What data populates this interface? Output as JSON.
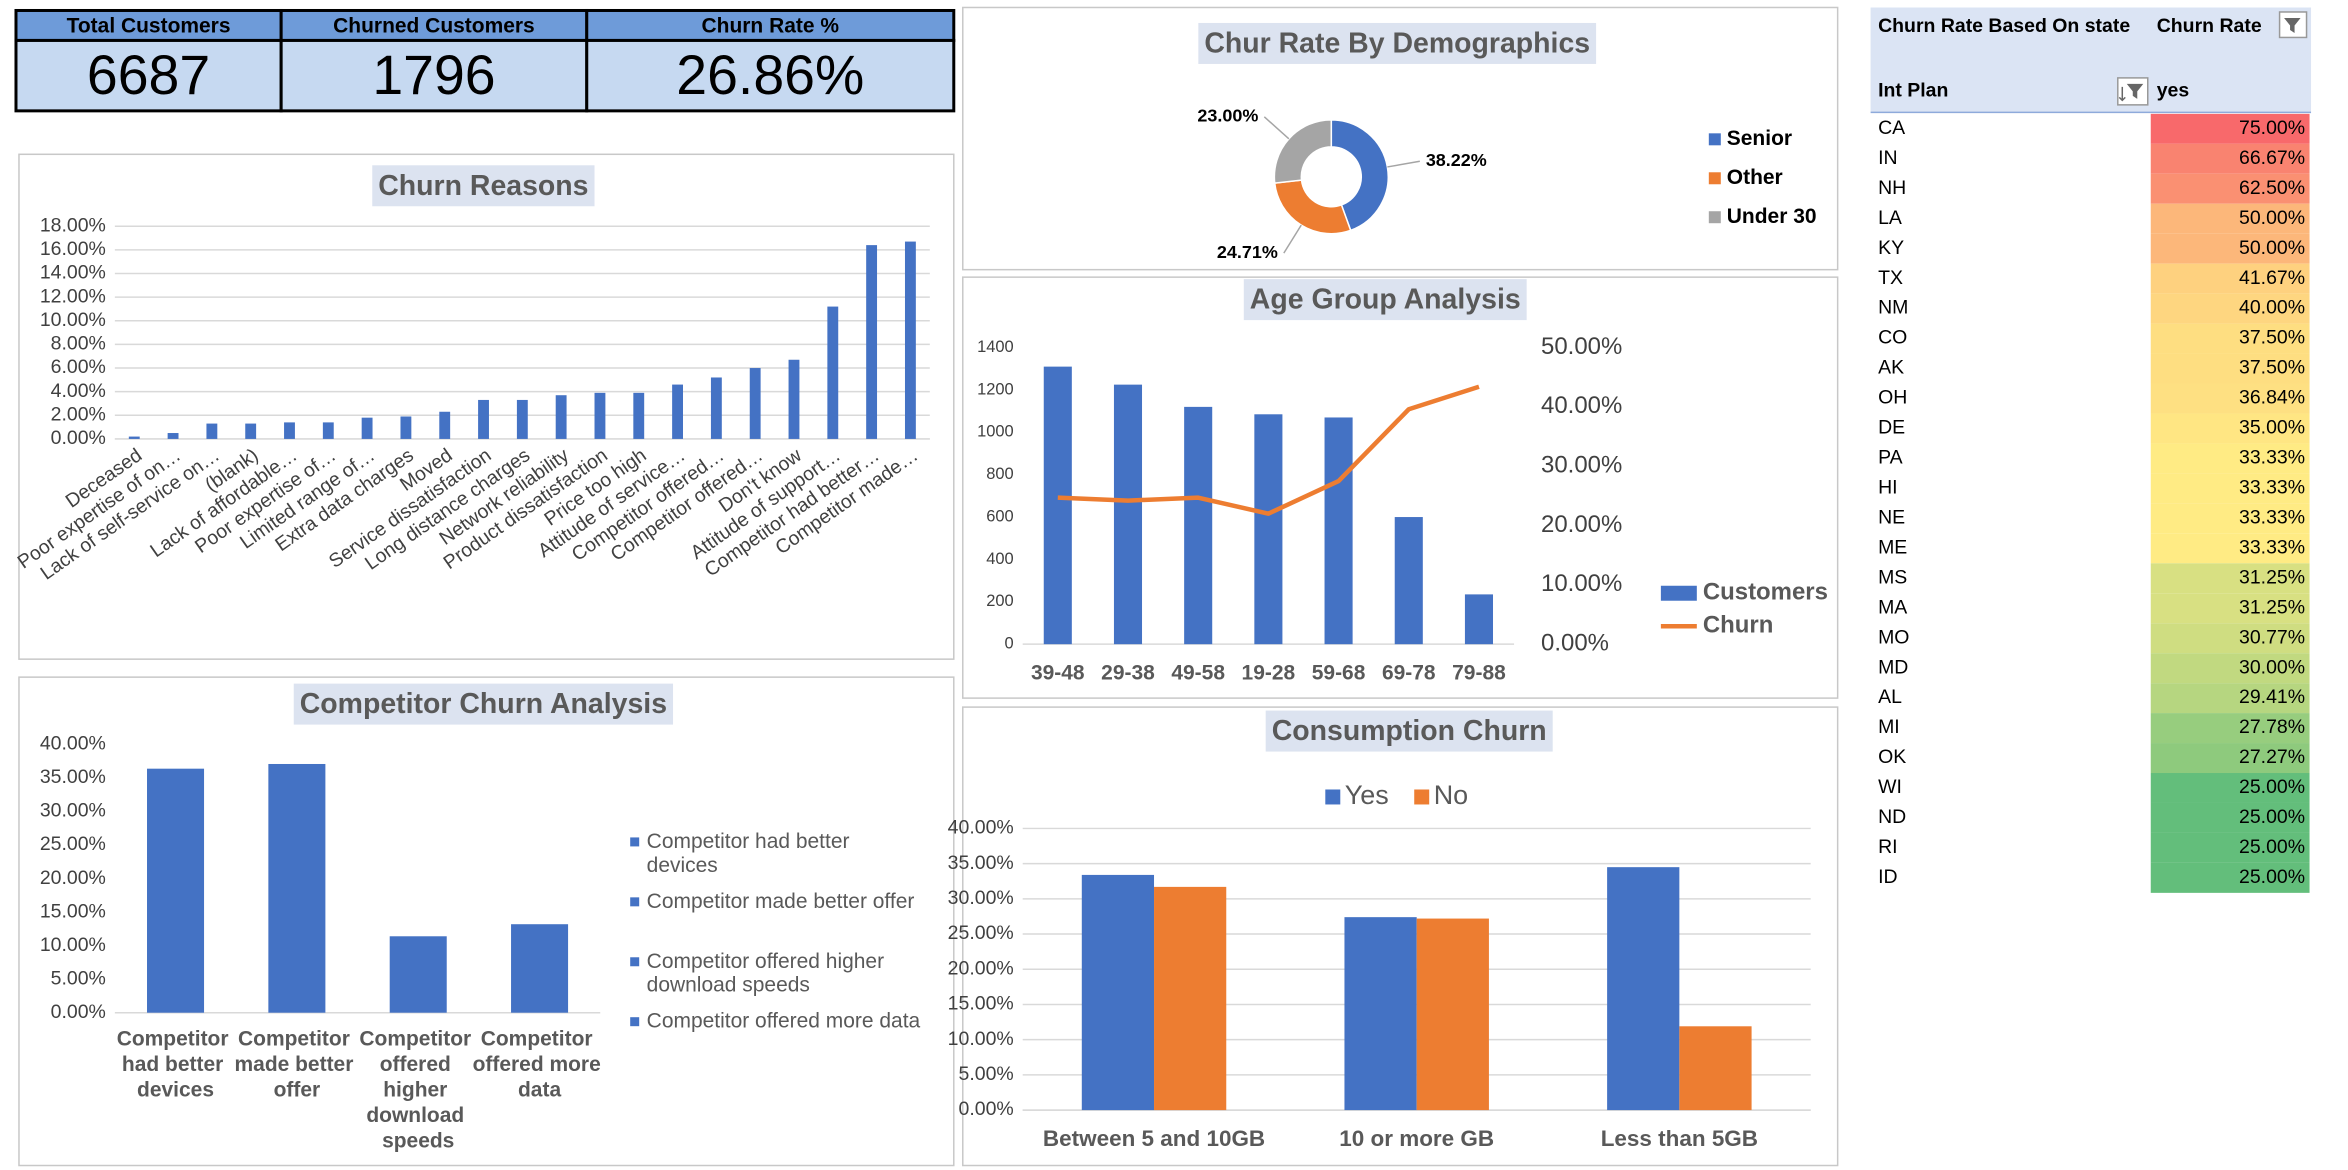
{
  "kpis": [
    {
      "label": "Total Customers",
      "value": 6687
    },
    {
      "label": "Churned Customers",
      "value": 1796
    },
    {
      "label": "Churn Rate %",
      "value": "26.86%"
    }
  ],
  "chart_data": [
    {
      "type": "bar",
      "title": "Churn Reasons",
      "color": "#4472c4",
      "grid": true,
      "categories": [
        "Deceased",
        "Poor expertise of on…",
        "Lack of self-service on…",
        "(blank)",
        "Lack of affordable…",
        "Poor expertise of…",
        "Limited range of…",
        "Extra data charges",
        "Moved",
        "Service dissatisfaction",
        "Long distance charges",
        "Network reliability",
        "Product dissatisfaction",
        "Price too high",
        "Attitude of service…",
        "Competitor offered…",
        "Competitor offered…",
        "Don't know",
        "Attitude of support…",
        "Competitor had better…",
        "Competitor made…"
      ],
      "values": [
        0.2,
        0.5,
        1.3,
        1.3,
        1.4,
        1.4,
        1.8,
        1.9,
        2.3,
        3.3,
        3.3,
        3.7,
        3.9,
        3.9,
        4.6,
        5.2,
        6.0,
        6.7,
        11.2,
        16.4,
        16.7
      ],
      "ylim": [
        0,
        18
      ],
      "yticks": [
        {
          "value": 0,
          "label": "0.00%"
        },
        {
          "value": 2,
          "label": "2.00%"
        },
        {
          "value": 4,
          "label": "4.00%"
        },
        {
          "value": 6,
          "label": "6.00%"
        },
        {
          "value": 8,
          "label": "8.00%"
        },
        {
          "value": 10,
          "label": "10.00%"
        },
        {
          "value": 12,
          "label": "12.00%"
        },
        {
          "value": 14,
          "label": "14.00%"
        },
        {
          "value": 16,
          "label": "16.00%"
        },
        {
          "value": 18,
          "label": "18.00%"
        }
      ]
    },
    {
      "type": "bar",
      "title": "Competitor Churn Analysis",
      "color": "#4472c4",
      "grid": false,
      "legend": "right",
      "categories": [
        "Competitor had better devices",
        "Competitor made better offer",
        "Competitor offered higher download speeds",
        "Competitor offered more data"
      ],
      "values": [
        36.4,
        37.1,
        11.4,
        13.2
      ],
      "ylim": [
        0,
        40
      ],
      "yticks": [
        {
          "value": 0,
          "label": "0.00%"
        },
        {
          "value": 5,
          "label": "5.00%"
        },
        {
          "value": 10,
          "label": "10.00%"
        },
        {
          "value": 15,
          "label": "15.00%"
        },
        {
          "value": 20,
          "label": "20.00%"
        },
        {
          "value": 25,
          "label": "25.00%"
        },
        {
          "value": 30,
          "label": "30.00%"
        },
        {
          "value": 35,
          "label": "35.00%"
        },
        {
          "value": 40,
          "label": "40.00%"
        }
      ]
    },
    {
      "type": "pie",
      "title": "Chur Rate By Demographics",
      "legend": "right",
      "categories": [
        "Senior",
        "Other",
        "Under 30"
      ],
      "values": [
        38.22,
        24.71,
        23.0
      ],
      "value_labels": [
        "38.22%",
        "24.71%",
        "23.00%"
      ],
      "colors": [
        "#4472c4",
        "#ed7d31",
        "#a5a5a5"
      ]
    },
    {
      "type": "combo",
      "title": "Age Group Analysis",
      "grid": false,
      "legend": "right",
      "categories": [
        "39-48",
        "29-38",
        "49-58",
        "19-28",
        "59-68",
        "69-78",
        "79-88"
      ],
      "series": [
        {
          "name": "Customers",
          "color": "#4472c4",
          "values": [
            1310,
            1225,
            1120,
            1085,
            1070,
            600,
            235
          ]
        },
        {
          "name": "Churn",
          "color": "#ed7d31",
          "axis": "y2",
          "values": [
            24.7,
            24.2,
            24.7,
            22.0,
            27.5,
            39.6,
            43.4
          ]
        }
      ],
      "ylim": [
        0,
        1400
      ],
      "yticks": [
        0,
        200,
        400,
        600,
        800,
        1000,
        1200,
        1400
      ],
      "y2lim": [
        0,
        50
      ],
      "y2ticks": [
        {
          "value": 0,
          "label": "0.00%"
        },
        {
          "value": 10,
          "label": "10.00%"
        },
        {
          "value": 20,
          "label": "20.00%"
        },
        {
          "value": 30,
          "label": "30.00%"
        },
        {
          "value": 40,
          "label": "40.00%"
        },
        {
          "value": 50,
          "label": "50.00%"
        }
      ]
    },
    {
      "type": "bar",
      "title": "Consumption Churn",
      "grid": true,
      "legend": "top",
      "categories": [
        "Between 5 and 10GB",
        "10 or more GB",
        "Less than 5GB"
      ],
      "series": [
        {
          "name": "Yes",
          "color": "#4472c4",
          "values": [
            33.4,
            27.4,
            34.5
          ]
        },
        {
          "name": "No",
          "color": "#ed7d31",
          "values": [
            31.7,
            27.2,
            11.9
          ]
        }
      ],
      "ylim": [
        0,
        40
      ],
      "yticks": [
        {
          "value": 0,
          "label": "0.00%"
        },
        {
          "value": 5,
          "label": "5.00%"
        },
        {
          "value": 10,
          "label": "10.00%"
        },
        {
          "value": 15,
          "label": "15.00%"
        },
        {
          "value": 20,
          "label": "20.00%"
        },
        {
          "value": 25,
          "label": "25.00%"
        },
        {
          "value": 30,
          "label": "30.00%"
        },
        {
          "value": 35,
          "label": "35.00%"
        },
        {
          "value": 40,
          "label": "40.00%"
        }
      ]
    }
  ],
  "table": {
    "header": [
      "Churn Rate Based On state",
      "Churn Rate"
    ],
    "subheader": [
      "Int Plan",
      "yes"
    ],
    "color_scale": [
      "#63be7b",
      "#ffeb84",
      "#f8696b"
    ],
    "rows": [
      [
        "CA",
        "75.00%"
      ],
      [
        "IN",
        "66.67%"
      ],
      [
        "NH",
        "62.50%"
      ],
      [
        "LA",
        "50.00%"
      ],
      [
        "KY",
        "50.00%"
      ],
      [
        "TX",
        "41.67%"
      ],
      [
        "NM",
        "40.00%"
      ],
      [
        "CO",
        "37.50%"
      ],
      [
        "AK",
        "37.50%"
      ],
      [
        "OH",
        "36.84%"
      ],
      [
        "DE",
        "35.00%"
      ],
      [
        "PA",
        "33.33%"
      ],
      [
        "HI",
        "33.33%"
      ],
      [
        "NE",
        "33.33%"
      ],
      [
        "ME",
        "33.33%"
      ],
      [
        "MS",
        "31.25%"
      ],
      [
        "MA",
        "31.25%"
      ],
      [
        "MO",
        "30.77%"
      ],
      [
        "MD",
        "30.00%"
      ],
      [
        "AL",
        "29.41%"
      ],
      [
        "MI",
        "27.78%"
      ],
      [
        "OK",
        "27.27%"
      ],
      [
        "WI",
        "25.00%"
      ],
      [
        "ND",
        "25.00%"
      ],
      [
        "RI",
        "25.00%"
      ],
      [
        "ID",
        "25.00%"
      ]
    ]
  }
}
